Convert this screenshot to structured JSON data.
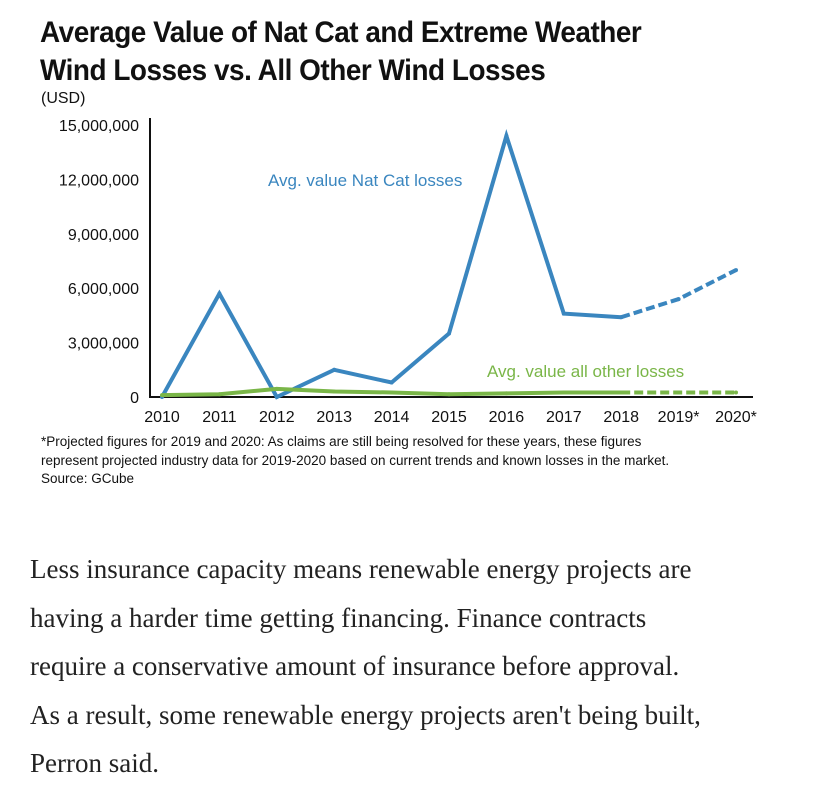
{
  "chart_data": {
    "type": "line",
    "title_lines": [
      "Average Value of Nat Cat and Extreme Weather",
      "Wind Losses vs. All Other Wind Losses"
    ],
    "ylabel": "(USD)",
    "ylim": [
      0,
      15000000
    ],
    "yticks": [
      0,
      3000000,
      6000000,
      9000000,
      12000000,
      15000000
    ],
    "ytick_labels": [
      "0",
      "3,000,000",
      "6,000,000",
      "9,000,000",
      "12,000,000",
      "15,000,000"
    ],
    "categories": [
      "2010",
      "2011",
      "2012",
      "2013",
      "2014",
      "2015",
      "2016",
      "2017",
      "2018",
      "2019*",
      "2020*"
    ],
    "projected_from_index": 8,
    "grid": false,
    "series": [
      {
        "name": "Avg. value Nat Cat losses",
        "color": "#3a86bf",
        "values": [
          0,
          5700000,
          0,
          1500000,
          800000,
          3500000,
          14400000,
          4600000,
          4400000,
          5400000,
          7000000
        ]
      },
      {
        "name": "Avg. value all other losses",
        "color": "#7ab648",
        "values": [
          100000,
          150000,
          450000,
          300000,
          250000,
          150000,
          200000,
          250000,
          250000,
          250000,
          250000
        ]
      }
    ]
  },
  "footnote": [
    "*Projected figures for 2019 and 2020: As claims are still being resolved for these years, these figures",
    "represent projected industry data for 2019-2020 based on current trends and known losses in the market.",
    "Source: GCube"
  ],
  "article_lines": [
    "Less insurance capacity means renewable energy projects are",
    "having a harder time getting financing. Finance contracts",
    "require a conservative amount of insurance before approval.",
    "As a result, some renewable energy projects aren't being built,",
    "Perron said."
  ]
}
